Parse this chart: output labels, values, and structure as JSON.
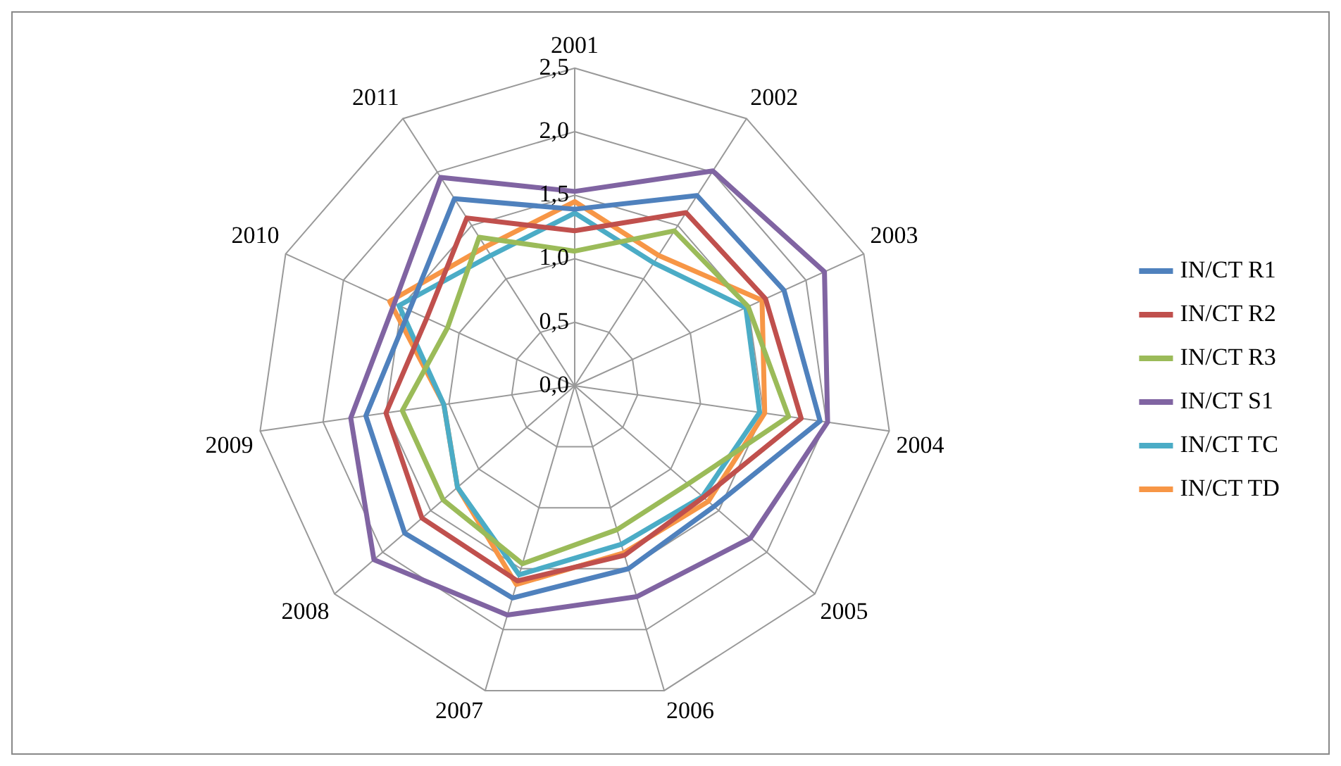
{
  "chart_data": {
    "type": "radar",
    "categories": [
      "2001",
      "2002",
      "2003",
      "2004",
      "2005",
      "2006",
      "2007",
      "2008",
      "2009",
      "2010",
      "2011"
    ],
    "series": [
      {
        "name": "IN/CT R1",
        "color": "#4f81bd",
        "values": [
          1.39,
          1.78,
          1.81,
          1.95,
          1.45,
          1.5,
          1.74,
          1.77,
          1.66,
          1.43,
          1.75
        ]
      },
      {
        "name": "IN/CT R2",
        "color": "#c0504d",
        "values": [
          1.22,
          1.62,
          1.65,
          1.8,
          1.34,
          1.39,
          1.6,
          1.59,
          1.5,
          1.28,
          1.57
        ]
      },
      {
        "name": "IN/CT R3",
        "color": "#9bbb59",
        "values": [
          1.06,
          1.45,
          1.5,
          1.7,
          1.18,
          1.18,
          1.46,
          1.37,
          1.37,
          1.1,
          1.39
        ]
      },
      {
        "name": "IN/CT S1",
        "color": "#8064a2",
        "values": [
          1.53,
          2.01,
          2.16,
          2.01,
          1.83,
          1.73,
          1.88,
          2.09,
          1.78,
          1.56,
          1.95
        ]
      },
      {
        "name": "IN/CT TC",
        "color": "#4bacc6",
        "values": [
          1.36,
          1.15,
          1.48,
          1.47,
          1.33,
          1.3,
          1.55,
          1.22,
          1.04,
          1.52,
          1.22
        ]
      },
      {
        "name": "IN/CT TD",
        "color": "#f79646",
        "values": [
          1.45,
          1.22,
          1.62,
          1.51,
          1.39,
          1.37,
          1.63,
          1.22,
          1.04,
          1.6,
          1.3
        ]
      }
    ],
    "ylim": [
      0,
      2.5
    ],
    "yticks": [
      {
        "value": 0,
        "label": "0,0"
      },
      {
        "value": 0.5,
        "label": "0,5"
      },
      {
        "value": 1,
        "label": "1,0"
      },
      {
        "value": 1.5,
        "label": "1,5"
      },
      {
        "value": 2,
        "label": "2,0"
      },
      {
        "value": 2.5,
        "label": "2,5"
      }
    ],
    "grid": true,
    "legend": "right",
    "marker": "none",
    "line_style": "solid"
  }
}
